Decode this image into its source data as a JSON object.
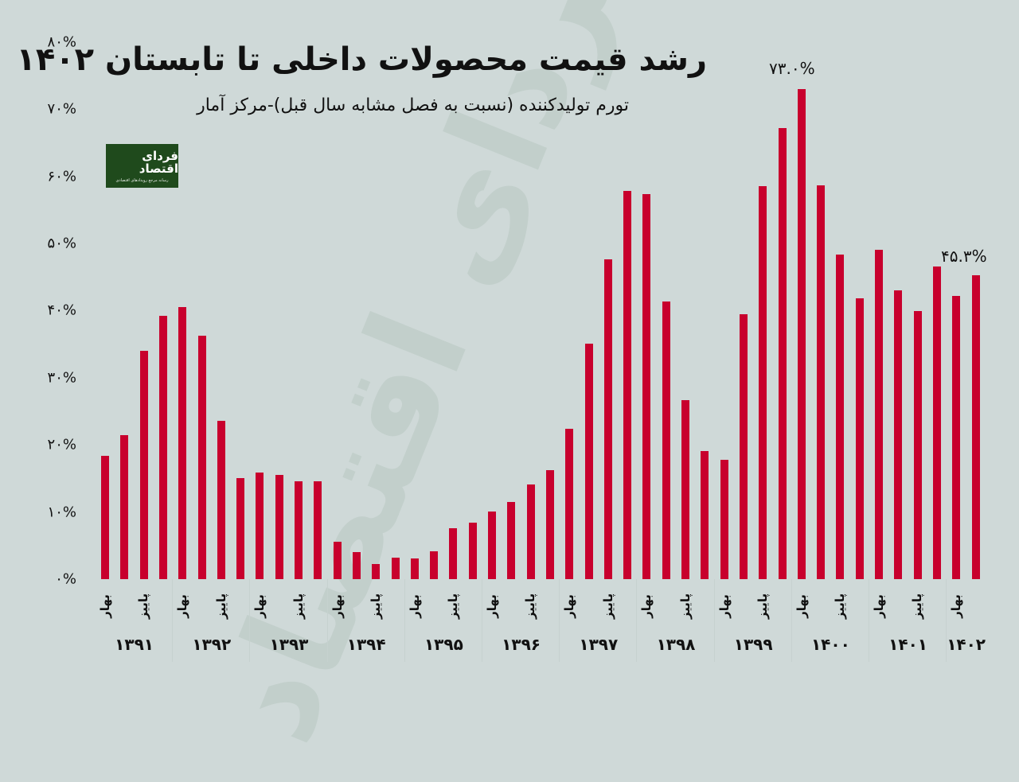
{
  "header": {
    "title": "رشد قیمت محصولات داخلی تا تابستان ۱۴۰۲",
    "subtitle": "تورم تولیدکننده (نسبت به فصل مشابه سال قبل)-مرکز آمار"
  },
  "logo": {
    "name": "فردای اقتصاد",
    "tagline": "رسانه مرجع رویدادهای اقتصادی"
  },
  "watermark": "فردای اقتصاد",
  "colors": {
    "background": "#cfd9d8",
    "bar": "#c8002d",
    "logo_bg": "#1f4a1c",
    "watermark": "#c2cfcb"
  },
  "y_axis": {
    "ticks": [
      "۰%",
      "۱۰%",
      "۲۰%",
      "۳۰%",
      "۴۰%",
      "۵۰%",
      "۶۰%",
      "۷۰%",
      "۸۰%"
    ]
  },
  "annotations": {
    "peak": "۷۳.۰%",
    "last": "۴۵.۳%"
  },
  "x_axis": {
    "season_labels": [
      "بهار",
      "پاییز"
    ],
    "years": [
      "۱۳۹۱",
      "۱۳۹۲",
      "۱۳۹۳",
      "۱۳۹۴",
      "۱۳۹۵",
      "۱۳۹۶",
      "۱۳۹۷",
      "۱۳۹۸",
      "۱۳۹۹",
      "۱۴۰۰",
      "۱۴۰۱",
      "۱۴۰۲"
    ]
  },
  "chart_data": {
    "type": "bar",
    "title": "رشد قیمت محصولات داخلی تا تابستان ۱۴۰۲",
    "subtitle": "تورم تولیدکننده (نسبت به فصل مشابه سال قبل)-مرکز آمار",
    "xlabel": "",
    "ylabel": "",
    "ylim": [
      0,
      80
    ],
    "y_ticks": [
      0,
      10,
      20,
      30,
      40,
      50,
      60,
      70,
      80
    ],
    "grid": false,
    "legend": null,
    "categories": [
      "1391 Spring",
      "1391 Summer",
      "1391 Autumn",
      "1391 Winter",
      "1392 Spring",
      "1392 Summer",
      "1392 Autumn",
      "1392 Winter",
      "1393 Spring",
      "1393 Summer",
      "1393 Autumn",
      "1393 Winter",
      "1394 Spring",
      "1394 Summer",
      "1394 Autumn",
      "1394 Winter",
      "1395 Spring",
      "1395 Summer",
      "1395 Autumn",
      "1395 Winter",
      "1396 Spring",
      "1396 Summer",
      "1396 Autumn",
      "1396 Winter",
      "1397 Spring",
      "1397 Summer",
      "1397 Autumn",
      "1397 Winter",
      "1398 Spring",
      "1398 Summer",
      "1398 Autumn",
      "1398 Winter",
      "1399 Spring",
      "1399 Summer",
      "1399 Autumn",
      "1399 Winter",
      "1400 Spring",
      "1400 Summer",
      "1400 Autumn",
      "1400 Winter",
      "1401 Spring",
      "1401 Summer",
      "1401 Autumn",
      "1401 Winter",
      "1402 Spring",
      "1402 Summer"
    ],
    "values": [
      18.4,
      21.4,
      34.0,
      39.2,
      40.5,
      36.3,
      23.6,
      15.0,
      15.9,
      15.5,
      14.6,
      14.6,
      5.6,
      4.0,
      2.3,
      3.2,
      3.1,
      4.1,
      7.6,
      8.4,
      10.1,
      11.5,
      14.1,
      16.2,
      22.4,
      35.1,
      47.6,
      57.8,
      57.3,
      41.4,
      26.7,
      19.1,
      17.8,
      39.5,
      58.5,
      67.2,
      73.0,
      58.6,
      48.3,
      41.8,
      49.1,
      43.0,
      39.9,
      46.6,
      42.2,
      45.3
    ],
    "annotations": [
      {
        "category": "1400 Spring",
        "text": "73.0%"
      },
      {
        "category": "1402 Summer",
        "text": "45.3%"
      }
    ]
  }
}
